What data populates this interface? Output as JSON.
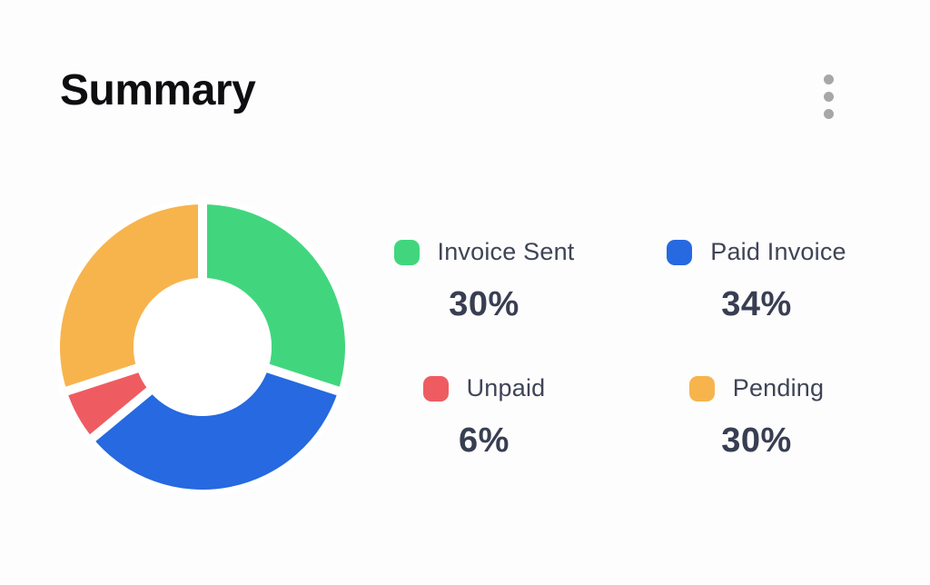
{
  "header": {
    "title": "Summary",
    "menu_icon": "kebab-vertical"
  },
  "colors": {
    "background": "#fdfdfd",
    "title_text": "#0e0e11",
    "label_text": "#3f4456",
    "percent_text": "#383e52",
    "menu_dots": "#a7a7a7",
    "donut_halo": "#ffffff",
    "green": "#41d67e",
    "blue": "#2669e0",
    "red": "#ee5c62",
    "orange": "#f7b44d"
  },
  "chart_data": {
    "type": "pie",
    "subtype": "donut",
    "title": "Summary",
    "direction": "clockwise",
    "start_angle_deg": 0,
    "inner_radius_ratio": 0.48,
    "legend_position": "right",
    "slices": [
      {
        "label": "Invoice Sent",
        "value_pct": 30,
        "color": "#41d67e"
      },
      {
        "label": "Paid Invoice",
        "value_pct": 34,
        "color": "#2669e0"
      },
      {
        "label": "Unpaid",
        "value_pct": 6,
        "color": "#ee5c62"
      },
      {
        "label": "Pending",
        "value_pct": 30,
        "color": "#f7b44d"
      }
    ]
  },
  "legend": {
    "items": [
      {
        "label": "Invoice Sent",
        "pct_label": "30%"
      },
      {
        "label": "Paid Invoice",
        "pct_label": "34%"
      },
      {
        "label": "Unpaid",
        "pct_label": "6%"
      },
      {
        "label": "Pending",
        "pct_label": "30%"
      }
    ]
  }
}
